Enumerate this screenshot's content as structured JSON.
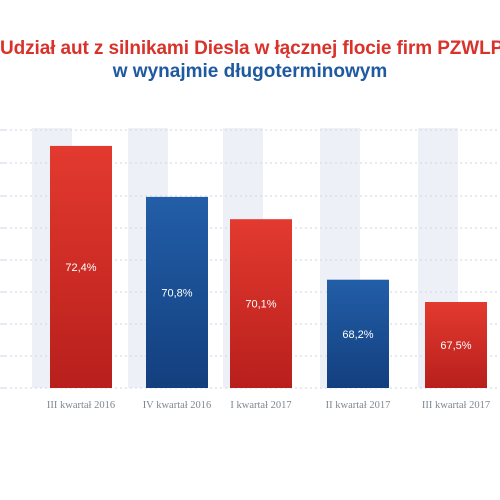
{
  "title": "Udział aut z silnikami Diesla w łącznej flocie firm PZWLP",
  "subtitle": "w wynajmie długoterminowym",
  "colors": {
    "red_top": "#e33a2f",
    "red_bottom": "#b81f1c",
    "blue_top": "#225ea8",
    "blue_bottom": "#133f7e",
    "stripe": "#edf0f6",
    "grid": "#cfd6e3",
    "label": "#7f8791"
  },
  "chart_data": {
    "type": "bar",
    "categories": [
      "III kwartał 2016",
      "IV kwartał 2016",
      "I kwartał 2017",
      "II kwartał 2017",
      "III kwartał 2017"
    ],
    "values": [
      72.4,
      70.8,
      70.1,
      68.2,
      67.5
    ],
    "value_labels": [
      "72,4%",
      "70,8%",
      "70,1%",
      "68,2%",
      "67,5%"
    ],
    "bar_colors": [
      "red",
      "blue",
      "red",
      "blue",
      "red"
    ],
    "ylim": [
      64.8,
      72.9
    ],
    "grid": true,
    "title": "Udział aut z silnikami Diesla w łącznej flocie firm PZWLP",
    "subtitle": "w wynajmie długoterminowym",
    "xlabel": "",
    "ylabel": ""
  }
}
